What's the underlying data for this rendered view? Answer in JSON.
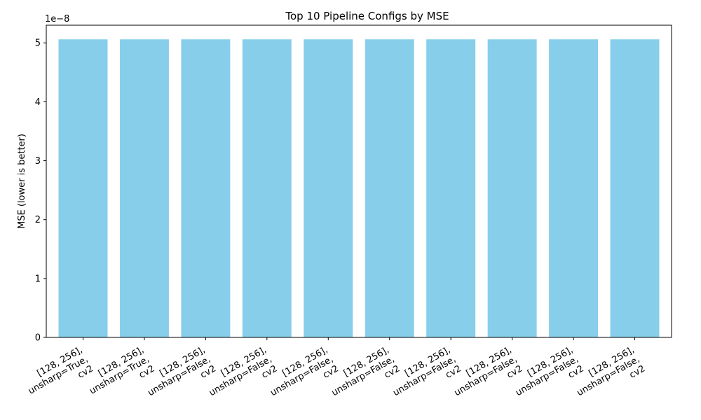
{
  "chart_data": {
    "type": "bar",
    "title": "Top 10 Pipeline Configs by MSE",
    "xlabel": "",
    "ylabel": "MSE (lower is better)",
    "offset_label": "1e−8",
    "scale": 1e-08,
    "ylim": [
      0,
      5.3
    ],
    "yticks": [
      0,
      1,
      2,
      3,
      4,
      5
    ],
    "bar_color": "#87CEEB",
    "categories": [
      [
        "[128, 256],",
        "unsharp=True,",
        "cv2"
      ],
      [
        "[128, 256],",
        "unsharp=True,",
        "cv2"
      ],
      [
        "[128, 256],",
        "unsharp=False,",
        "cv2"
      ],
      [
        "[128, 256],",
        "unsharp=False,",
        "cv2"
      ],
      [
        "[128, 256],",
        "unsharp=False,",
        "cv2"
      ],
      [
        "[128, 256],",
        "unsharp=False,",
        "cv2"
      ],
      [
        "[128, 256],",
        "unsharp=False,",
        "cv2"
      ],
      [
        "[128, 256],",
        "unsharp=False,",
        "cv2"
      ],
      [
        "[128, 256],",
        "unsharp=False,",
        "cv2"
      ],
      [
        "[128, 256],",
        "unsharp=False,",
        "cv2"
      ]
    ],
    "values": [
      5.06,
      5.06,
      5.06,
      5.06,
      5.06,
      5.06,
      5.06,
      5.06,
      5.06,
      5.06
    ],
    "grid": false,
    "legend": false
  }
}
